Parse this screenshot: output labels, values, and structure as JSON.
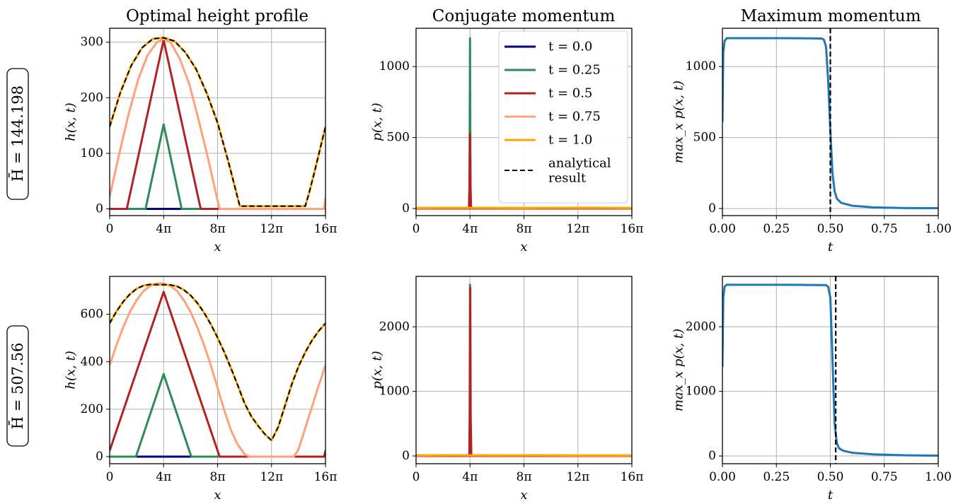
{
  "colors": {
    "t0": "#000080",
    "t025": "#2e8b57",
    "t05": "#b22222",
    "t075": "#ffa07a",
    "t1": "#ffa500",
    "momentum": "#1f77b4",
    "analytical": "#000000",
    "grid": "#b0b0b0"
  },
  "titles": {
    "col1": "Optimal height profile",
    "col2": "Conjugate momentum",
    "col3": "Maximum momentum"
  },
  "row_labels": [
    "H̄ = 144.198",
    "H̄ = 507.56"
  ],
  "legend": {
    "placement": "upper right of middle-top panel",
    "entries": [
      {
        "label": "t = 0.0",
        "color": "t0",
        "dash": false
      },
      {
        "label": "t = 0.25",
        "color": "t025",
        "dash": false
      },
      {
        "label": "t = 0.5",
        "color": "t05",
        "dash": false
      },
      {
        "label": "t = 0.75",
        "color": "t075",
        "dash": false
      },
      {
        "label": "t = 1.0",
        "color": "t1",
        "dash": false
      },
      {
        "label": "analytical",
        "label2": "result",
        "color": "analytical",
        "dash": true
      }
    ]
  },
  "chart_data": [
    {
      "id": "h-top",
      "type": "line",
      "xlabel": "x",
      "ylabel": "h(x, t)",
      "xlim": [
        0,
        16
      ],
      "ylim": [
        -12,
        325
      ],
      "xticks": [
        0,
        4,
        8,
        12,
        16
      ],
      "xticklabels": [
        "0",
        "4π",
        "8π",
        "12π",
        "16π"
      ],
      "yticks": [
        0,
        100,
        200,
        300
      ],
      "yticklabels": [
        "0",
        "100",
        "200",
        "300"
      ],
      "grid": true,
      "series": [
        {
          "color": "t0",
          "x": [
            0,
            16
          ],
          "y": [
            0,
            0
          ]
        },
        {
          "color": "t025",
          "x": [
            0,
            2.66,
            4,
            5.34,
            16
          ],
          "y": [
            0,
            0,
            152,
            0,
            0
          ]
        },
        {
          "color": "t05",
          "x": [
            0,
            1.27,
            4,
            6.75,
            15.9,
            16
          ],
          "y": [
            0,
            0,
            304,
            0,
            0,
            10
          ]
        },
        {
          "color": "t075",
          "x": [
            0,
            0.7,
            1.4,
            2.1,
            2.8,
            3.5,
            4,
            4.5,
            5.2,
            5.9,
            6.6,
            7.3,
            8,
            8.15,
            15.9,
            16
          ],
          "y": [
            22,
            98,
            170,
            232,
            276,
            300,
            306,
            300,
            270,
            225,
            160,
            90,
            15,
            0,
            0,
            20
          ]
        },
        {
          "color": "t1",
          "x": [
            0,
            0.8,
            1.6,
            2.4,
            3.2,
            4,
            4.8,
            5.6,
            6.4,
            7.2,
            8,
            8.8,
            9.65,
            14.5,
            14.8,
            15.2,
            15.6,
            16
          ],
          "y": [
            148,
            210,
            258,
            290,
            306,
            308,
            302,
            282,
            252,
            208,
            155,
            85,
            5,
            5,
            30,
            68,
            108,
            148
          ]
        },
        {
          "color": "analytical",
          "dash": true,
          "x": [
            0,
            0.8,
            1.6,
            2.4,
            3.2,
            4,
            4.8,
            5.6,
            6.4,
            7.2,
            8,
            8.8,
            9.65,
            14.5,
            14.8,
            15.2,
            15.6,
            16
          ],
          "y": [
            148,
            210,
            258,
            290,
            306,
            308,
            302,
            282,
            252,
            208,
            155,
            85,
            5,
            5,
            30,
            68,
            108,
            148
          ]
        }
      ]
    },
    {
      "id": "p-top",
      "type": "line",
      "xlabel": "x",
      "ylabel": "p(x, t)",
      "xlim": [
        0,
        16
      ],
      "ylim": [
        -50,
        1270
      ],
      "xticks": [
        0,
        4,
        8,
        12,
        16
      ],
      "xticklabels": [
        "0",
        "4π",
        "8π",
        "12π",
        "16π"
      ],
      "yticks": [
        0,
        500,
        1000
      ],
      "yticklabels": [
        "0",
        "500",
        "1000"
      ],
      "grid": true,
      "series": [
        {
          "color": "t0",
          "x": [
            0,
            16
          ],
          "y": [
            0,
            0
          ]
        },
        {
          "color": "t025",
          "x": [
            0,
            3.95,
            3.97,
            4.0,
            4.03,
            4.05,
            16
          ],
          "y": [
            0,
            0,
            300,
            1200,
            300,
            0,
            0
          ]
        },
        {
          "color": "t05",
          "x": [
            0,
            3.92,
            3.96,
            4.0,
            4.04,
            4.08,
            16
          ],
          "y": [
            0,
            0,
            150,
            530,
            150,
            0,
            0
          ]
        },
        {
          "color": "t075",
          "x": [
            0,
            16
          ],
          "y": [
            4,
            4
          ]
        },
        {
          "color": "t1",
          "x": [
            0,
            2,
            5,
            8,
            10,
            13,
            16
          ],
          "y": [
            3,
            5,
            5,
            3,
            5,
            6,
            3
          ]
        }
      ]
    },
    {
      "id": "max-top",
      "type": "line",
      "xlabel": "t",
      "ylabel": "max_x p(x, t)",
      "xlim": [
        0,
        1
      ],
      "ylim": [
        -50,
        1270
      ],
      "xticks": [
        0,
        0.25,
        0.5,
        0.75,
        1.0
      ],
      "xticklabels": [
        "0.00",
        "0.25",
        "0.50",
        "0.75",
        "1.00"
      ],
      "yticks": [
        0,
        500,
        1000
      ],
      "yticklabels": [
        "0",
        "500",
        "1000"
      ],
      "grid": true,
      "vline": {
        "x": 0.5,
        "color": "analytical"
      },
      "series": [
        {
          "color": "momentum",
          "x": [
            0,
            0.004,
            0.01,
            0.02,
            0.05,
            0.3,
            0.46,
            0.47,
            0.48,
            0.49,
            0.5,
            0.51,
            0.52,
            0.53,
            0.55,
            0.6,
            0.7,
            0.85,
            1.0
          ],
          "y": [
            610,
            1100,
            1180,
            1200,
            1200,
            1200,
            1198,
            1190,
            1140,
            900,
            550,
            250,
            120,
            70,
            40,
            20,
            8,
            3,
            2
          ]
        }
      ]
    },
    {
      "id": "h-bottom",
      "type": "line",
      "xlabel": "x",
      "ylabel": "h(x, t)",
      "xlim": [
        0,
        16
      ],
      "ylim": [
        -30,
        760
      ],
      "xticks": [
        0,
        4,
        8,
        12,
        16
      ],
      "xticklabels": [
        "0",
        "4π",
        "8π",
        "12π",
        "16π"
      ],
      "yticks": [
        0,
        200,
        400,
        600
      ],
      "yticklabels": [
        "0",
        "200",
        "400",
        "600"
      ],
      "grid": true,
      "series": [
        {
          "color": "t0",
          "x": [
            0,
            16
          ],
          "y": [
            0,
            0
          ]
        },
        {
          "color": "t025",
          "x": [
            0,
            1.95,
            4,
            6.05,
            16
          ],
          "y": [
            0,
            0,
            348,
            0,
            0
          ]
        },
        {
          "color": "t05",
          "x": [
            0,
            4,
            8.15,
            15.9,
            16
          ],
          "y": [
            25,
            695,
            0,
            0,
            25
          ]
        },
        {
          "color": "t075",
          "x": [
            0,
            0.5,
            1,
            1.5,
            2,
            2.5,
            3,
            3.5,
            4,
            4.5,
            5,
            5.5,
            6,
            6.5,
            7,
            7.5,
            8,
            8.5,
            9,
            9.5,
            10,
            10.35,
            13.65,
            14.0,
            14.5,
            15.0,
            15.5,
            16
          ],
          "y": [
            385,
            470,
            545,
            610,
            660,
            698,
            720,
            730,
            730,
            720,
            698,
            660,
            610,
            545,
            470,
            385,
            290,
            195,
            110,
            50,
            10,
            0,
            0,
            30,
            120,
            210,
            300,
            385
          ]
        },
        {
          "color": "t1",
          "x": [
            0,
            0.5,
            1,
            1.5,
            2,
            2.5,
            3,
            3.5,
            4,
            4.5,
            5,
            5.5,
            6,
            6.5,
            7,
            7.5,
            8,
            8.5,
            9,
            9.5,
            10,
            10.5,
            11,
            11.5,
            12,
            12.5,
            13,
            13.5,
            14,
            14.5,
            15,
            15.5,
            16
          ],
          "y": [
            562,
            612,
            653,
            685,
            708,
            721,
            726,
            725,
            725,
            724,
            718,
            703,
            680,
            648,
            607,
            558,
            502,
            440,
            372,
            300,
            225,
            170,
            130,
            95,
            68,
            125,
            215,
            305,
            380,
            440,
            490,
            530,
            562
          ]
        },
        {
          "color": "analytical",
          "dash": true,
          "x": [
            0,
            0.5,
            1,
            1.5,
            2,
            2.5,
            3,
            3.5,
            4,
            4.5,
            5,
            5.5,
            6,
            6.5,
            7,
            7.5,
            8,
            8.5,
            9,
            9.5,
            10,
            10.5,
            11,
            11.5,
            12,
            12.5,
            13,
            13.5,
            14,
            14.5,
            15,
            15.5,
            16
          ],
          "y": [
            562,
            612,
            653,
            685,
            708,
            721,
            726,
            725,
            725,
            724,
            718,
            703,
            680,
            648,
            607,
            558,
            502,
            440,
            372,
            300,
            225,
            170,
            130,
            95,
            68,
            125,
            215,
            305,
            380,
            440,
            490,
            530,
            562
          ]
        }
      ]
    },
    {
      "id": "p-bottom",
      "type": "line",
      "xlabel": "x",
      "ylabel": "p(x, t)",
      "xlim": [
        0,
        16
      ],
      "ylim": [
        -120,
        2780
      ],
      "xticks": [
        0,
        4,
        8,
        12,
        16
      ],
      "xticklabels": [
        "0",
        "4π",
        "8π",
        "12π",
        "16π"
      ],
      "yticks": [
        0,
        1000,
        2000
      ],
      "yticklabels": [
        "0",
        "1000",
        "2000"
      ],
      "grid": true,
      "series": [
        {
          "color": "t0",
          "x": [
            0,
            16
          ],
          "y": [
            0,
            0
          ]
        },
        {
          "color": "t025",
          "x": [
            0,
            3.96,
            3.98,
            4.0,
            4.02,
            4.04,
            16
          ],
          "y": [
            0,
            0,
            700,
            2650,
            700,
            0,
            0
          ]
        },
        {
          "color": "t05",
          "x": [
            0,
            3.95,
            3.98,
            4.02,
            4.05,
            4.1,
            16
          ],
          "y": [
            0,
            0,
            600,
            2600,
            600,
            0,
            0
          ]
        },
        {
          "color": "t075",
          "x": [
            0,
            16
          ],
          "y": [
            10,
            10
          ]
        },
        {
          "color": "t1",
          "x": [
            0,
            3,
            6,
            9,
            12,
            16
          ],
          "y": [
            6,
            12,
            8,
            10,
            6,
            6
          ]
        }
      ]
    },
    {
      "id": "max-bottom",
      "type": "line",
      "xlabel": "t",
      "ylabel": "max_x p(x, t)",
      "xlim": [
        0,
        1
      ],
      "ylim": [
        -120,
        2780
      ],
      "xticks": [
        0,
        0.25,
        0.5,
        0.75,
        1.0
      ],
      "xticklabels": [
        "0.00",
        "0.25",
        "0.50",
        "0.75",
        "1.00"
      ],
      "yticks": [
        0,
        1000,
        2000
      ],
      "yticklabels": [
        "0",
        "1000",
        "2000"
      ],
      "grid": true,
      "vline": {
        "x": 0.525,
        "color": "analytical"
      },
      "series": [
        {
          "color": "momentum",
          "x": [
            0,
            0.004,
            0.01,
            0.02,
            0.05,
            0.3,
            0.48,
            0.49,
            0.5,
            0.51,
            0.52,
            0.53,
            0.54,
            0.56,
            0.6,
            0.7,
            0.85,
            1.0
          ],
          "y": [
            1380,
            2450,
            2620,
            2650,
            2650,
            2650,
            2645,
            2620,
            2450,
            1500,
            500,
            200,
            120,
            80,
            50,
            25,
            10,
            5
          ]
        }
      ]
    }
  ]
}
